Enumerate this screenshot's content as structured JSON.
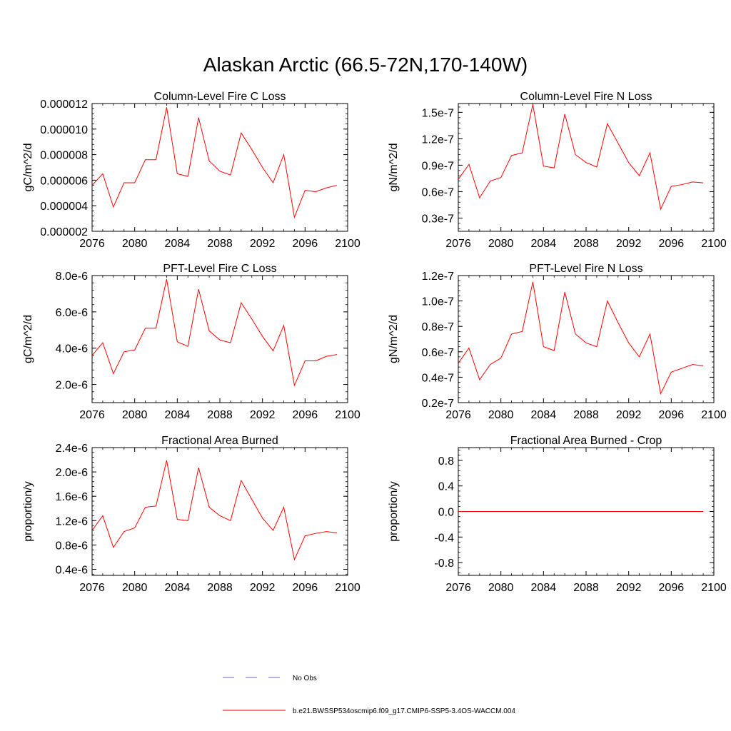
{
  "page_title": "Alaskan Arctic (66.5-72N,170-140W)",
  "colors": {
    "series": "#ff0000",
    "obs": "#6666cc",
    "axis": "#000000"
  },
  "legend": {
    "obs_label": "No Obs",
    "model_label": "b.e21.BWSSP534oscmip6.f09_g17.CMIP6-SSP5-3.4OS-WACCM.004"
  },
  "chart_data": [
    {
      "id": "col-fire-c",
      "type": "line",
      "title": "Column-Level Fire C Loss",
      "ylabel": "gC/m^2/d",
      "xlim": [
        2076,
        2100
      ],
      "ylim": [
        2e-06,
        1.2e-05
      ],
      "xticks": [
        2076,
        2080,
        2084,
        2088,
        2092,
        2096,
        2100
      ],
      "xtick_labels": [
        "2076",
        "2080",
        "2084",
        "2088",
        "2092",
        "2096",
        "2100"
      ],
      "yticks": [
        2e-06,
        4e-06,
        6e-06,
        8e-06,
        1e-05,
        1.2e-05
      ],
      "ytick_labels": [
        "0.000002",
        "0.000004",
        "0.000006",
        "0.000008",
        "0.000010",
        "0.000012"
      ],
      "x": [
        2076,
        2077,
        2078,
        2079,
        2080,
        2081,
        2082,
        2083,
        2084,
        2085,
        2086,
        2087,
        2088,
        2089,
        2090,
        2091,
        2092,
        2093,
        2094,
        2095,
        2096,
        2097,
        2098,
        2099
      ],
      "values": [
        5.6e-06,
        6.5e-06,
        3.9e-06,
        5.8e-06,
        5.8e-06,
        7.6e-06,
        7.6e-06,
        1.17e-05,
        6.5e-06,
        6.3e-06,
        1.09e-05,
        7.5e-06,
        6.7e-06,
        6.4e-06,
        9.7e-06,
        8.4e-06,
        7e-06,
        5.8e-06,
        8e-06,
        3.1e-06,
        5.2e-06,
        5.1e-06,
        5.4e-06,
        5.6e-06
      ]
    },
    {
      "id": "col-fire-n",
      "type": "line",
      "title": "Column-Level Fire N Loss",
      "ylabel": "gN/m^2/d",
      "xlim": [
        2076,
        2100
      ],
      "ylim": [
        1.5e-08,
        1.6e-07
      ],
      "xticks": [
        2076,
        2080,
        2084,
        2088,
        2092,
        2096,
        2100
      ],
      "xtick_labels": [
        "2076",
        "2080",
        "2084",
        "2088",
        "2092",
        "2096",
        "2100"
      ],
      "yticks": [
        3e-08,
        6e-08,
        9e-08,
        1.2e-07,
        1.5e-07
      ],
      "ytick_labels": [
        "0.3e-7",
        "0.6e-7",
        "0.9e-7",
        "1.2e-7",
        "1.5e-7"
      ],
      "x": [
        2076,
        2077,
        2078,
        2079,
        2080,
        2081,
        2082,
        2083,
        2084,
        2085,
        2086,
        2087,
        2088,
        2089,
        2090,
        2091,
        2092,
        2093,
        2094,
        2095,
        2096,
        2097,
        2098,
        2099
      ],
      "values": [
        7.4e-08,
        9.1e-08,
        5.3e-08,
        7.2e-08,
        7.6e-08,
        1.01e-07,
        1.04e-07,
        1.59e-07,
        8.9e-08,
        8.7e-08,
        1.48e-07,
        1.02e-07,
        9.3e-08,
        8.8e-08,
        1.37e-07,
        1.15e-07,
        9.3e-08,
        7.8e-08,
        1.04e-07,
        4e-08,
        6.6e-08,
        6.8e-08,
        7.1e-08,
        7e-08
      ]
    },
    {
      "id": "pft-fire-c",
      "type": "line",
      "title": "PFT-Level Fire C Loss",
      "ylabel": "gC/m^2/d",
      "xlim": [
        2076,
        2100
      ],
      "ylim": [
        1e-06,
        8e-06
      ],
      "xticks": [
        2076,
        2080,
        2084,
        2088,
        2092,
        2096,
        2100
      ],
      "xtick_labels": [
        "2076",
        "2080",
        "2084",
        "2088",
        "2092",
        "2096",
        "2100"
      ],
      "yticks": [
        2e-06,
        4e-06,
        6e-06,
        8e-06
      ],
      "ytick_labels": [
        "2.0e-6",
        "4.0e-6",
        "6.0e-6",
        "8.0e-6"
      ],
      "x": [
        2076,
        2077,
        2078,
        2079,
        2080,
        2081,
        2082,
        2083,
        2084,
        2085,
        2086,
        2087,
        2088,
        2089,
        2090,
        2091,
        2092,
        2093,
        2094,
        2095,
        2096,
        2097,
        2098,
        2099
      ],
      "values": [
        3.6e-06,
        4.3e-06,
        2.6e-06,
        3.8e-06,
        3.9e-06,
        5.1e-06,
        5.1e-06,
        7.8e-06,
        4.35e-06,
        4.1e-06,
        7.25e-06,
        4.95e-06,
        4.45e-06,
        4.3e-06,
        6.5e-06,
        5.6e-06,
        4.65e-06,
        3.85e-06,
        5.25e-06,
        1.95e-06,
        3.3e-06,
        3.3e-06,
        3.55e-06,
        3.65e-06
      ]
    },
    {
      "id": "pft-fire-n",
      "type": "line",
      "title": "PFT-Level Fire N Loss",
      "ylabel": "gN/m^2/d",
      "xlim": [
        2076,
        2100
      ],
      "ylim": [
        2e-08,
        1.2e-07
      ],
      "xticks": [
        2076,
        2080,
        2084,
        2088,
        2092,
        2096,
        2100
      ],
      "xtick_labels": [
        "2076",
        "2080",
        "2084",
        "2088",
        "2092",
        "2096",
        "2100"
      ],
      "yticks": [
        2e-08,
        4e-08,
        6e-08,
        8e-08,
        1e-07,
        1.2e-07
      ],
      "ytick_labels": [
        "0.2e-7",
        "0.4e-7",
        "0.6e-7",
        "0.8e-7",
        "1.0e-7",
        "1.2e-7"
      ],
      "x": [
        2076,
        2077,
        2078,
        2079,
        2080,
        2081,
        2082,
        2083,
        2084,
        2085,
        2086,
        2087,
        2088,
        2089,
        2090,
        2091,
        2092,
        2093,
        2094,
        2095,
        2096,
        2097,
        2098,
        2099
      ],
      "values": [
        5.1e-08,
        6.3e-08,
        3.8e-08,
        5e-08,
        5.5e-08,
        7.4e-08,
        7.6e-08,
        1.15e-07,
        6.4e-08,
        6.1e-08,
        1.07e-07,
        7.4e-08,
        6.7e-08,
        6.4e-08,
        1e-07,
        8.3e-08,
        6.7e-08,
        5.6e-08,
        7.4e-08,
        2.7e-08,
        4.4e-08,
        4.7e-08,
        5e-08,
        4.9e-08
      ]
    },
    {
      "id": "frac-area-burned",
      "type": "line",
      "title": "Fractional Area Burned",
      "ylabel": "proportion/y",
      "xlim": [
        2076,
        2100
      ],
      "ylim": [
        3e-07,
        2.4e-06
      ],
      "xticks": [
        2076,
        2080,
        2084,
        2088,
        2092,
        2096,
        2100
      ],
      "xtick_labels": [
        "2076",
        "2080",
        "2084",
        "2088",
        "2092",
        "2096",
        "2100"
      ],
      "yticks": [
        4e-07,
        8e-07,
        1.2e-06,
        1.6e-06,
        2e-06,
        2.4e-06
      ],
      "ytick_labels": [
        "0.4e-6",
        "0.8e-6",
        "1.2e-6",
        "1.6e-6",
        "2.0e-6",
        "2.4e-6"
      ],
      "x": [
        2076,
        2077,
        2078,
        2079,
        2080,
        2081,
        2082,
        2083,
        2084,
        2085,
        2086,
        2087,
        2088,
        2089,
        2090,
        2091,
        2092,
        2093,
        2094,
        2095,
        2096,
        2097,
        2098,
        2099
      ],
      "values": [
        1.04e-06,
        1.28e-06,
        7.6e-07,
        1.02e-06,
        1.08e-06,
        1.42e-06,
        1.44e-06,
        2.19e-06,
        1.22e-06,
        1.2e-06,
        2.07e-06,
        1.42e-06,
        1.28e-06,
        1.2e-06,
        1.86e-06,
        1.55e-06,
        1.24e-06,
        1.04e-06,
        1.42e-06,
        5.6e-07,
        9.5e-07,
        9.9e-07,
        1.02e-06,
        1e-06
      ]
    },
    {
      "id": "frac-area-burned-crop",
      "type": "line",
      "title": "Fractional Area Burned - Crop",
      "ylabel": "proportion/y",
      "xlim": [
        2076,
        2100
      ],
      "ylim": [
        -1.0,
        1.0
      ],
      "xticks": [
        2076,
        2080,
        2084,
        2088,
        2092,
        2096,
        2100
      ],
      "xtick_labels": [
        "2076",
        "2080",
        "2084",
        "2088",
        "2092",
        "2096",
        "2100"
      ],
      "yticks": [
        -0.8,
        -0.4,
        0.0,
        0.4,
        0.8
      ],
      "ytick_labels": [
        "-0.8",
        "-0.4",
        "0.0",
        "0.4",
        "0.8"
      ],
      "x": [
        2076,
        2077,
        2078,
        2079,
        2080,
        2081,
        2082,
        2083,
        2084,
        2085,
        2086,
        2087,
        2088,
        2089,
        2090,
        2091,
        2092,
        2093,
        2094,
        2095,
        2096,
        2097,
        2098,
        2099
      ],
      "values": [
        0,
        0,
        0,
        0,
        0,
        0,
        0,
        0,
        0,
        0,
        0,
        0,
        0,
        0,
        0,
        0,
        0,
        0,
        0,
        0,
        0,
        0,
        0,
        0
      ]
    }
  ]
}
